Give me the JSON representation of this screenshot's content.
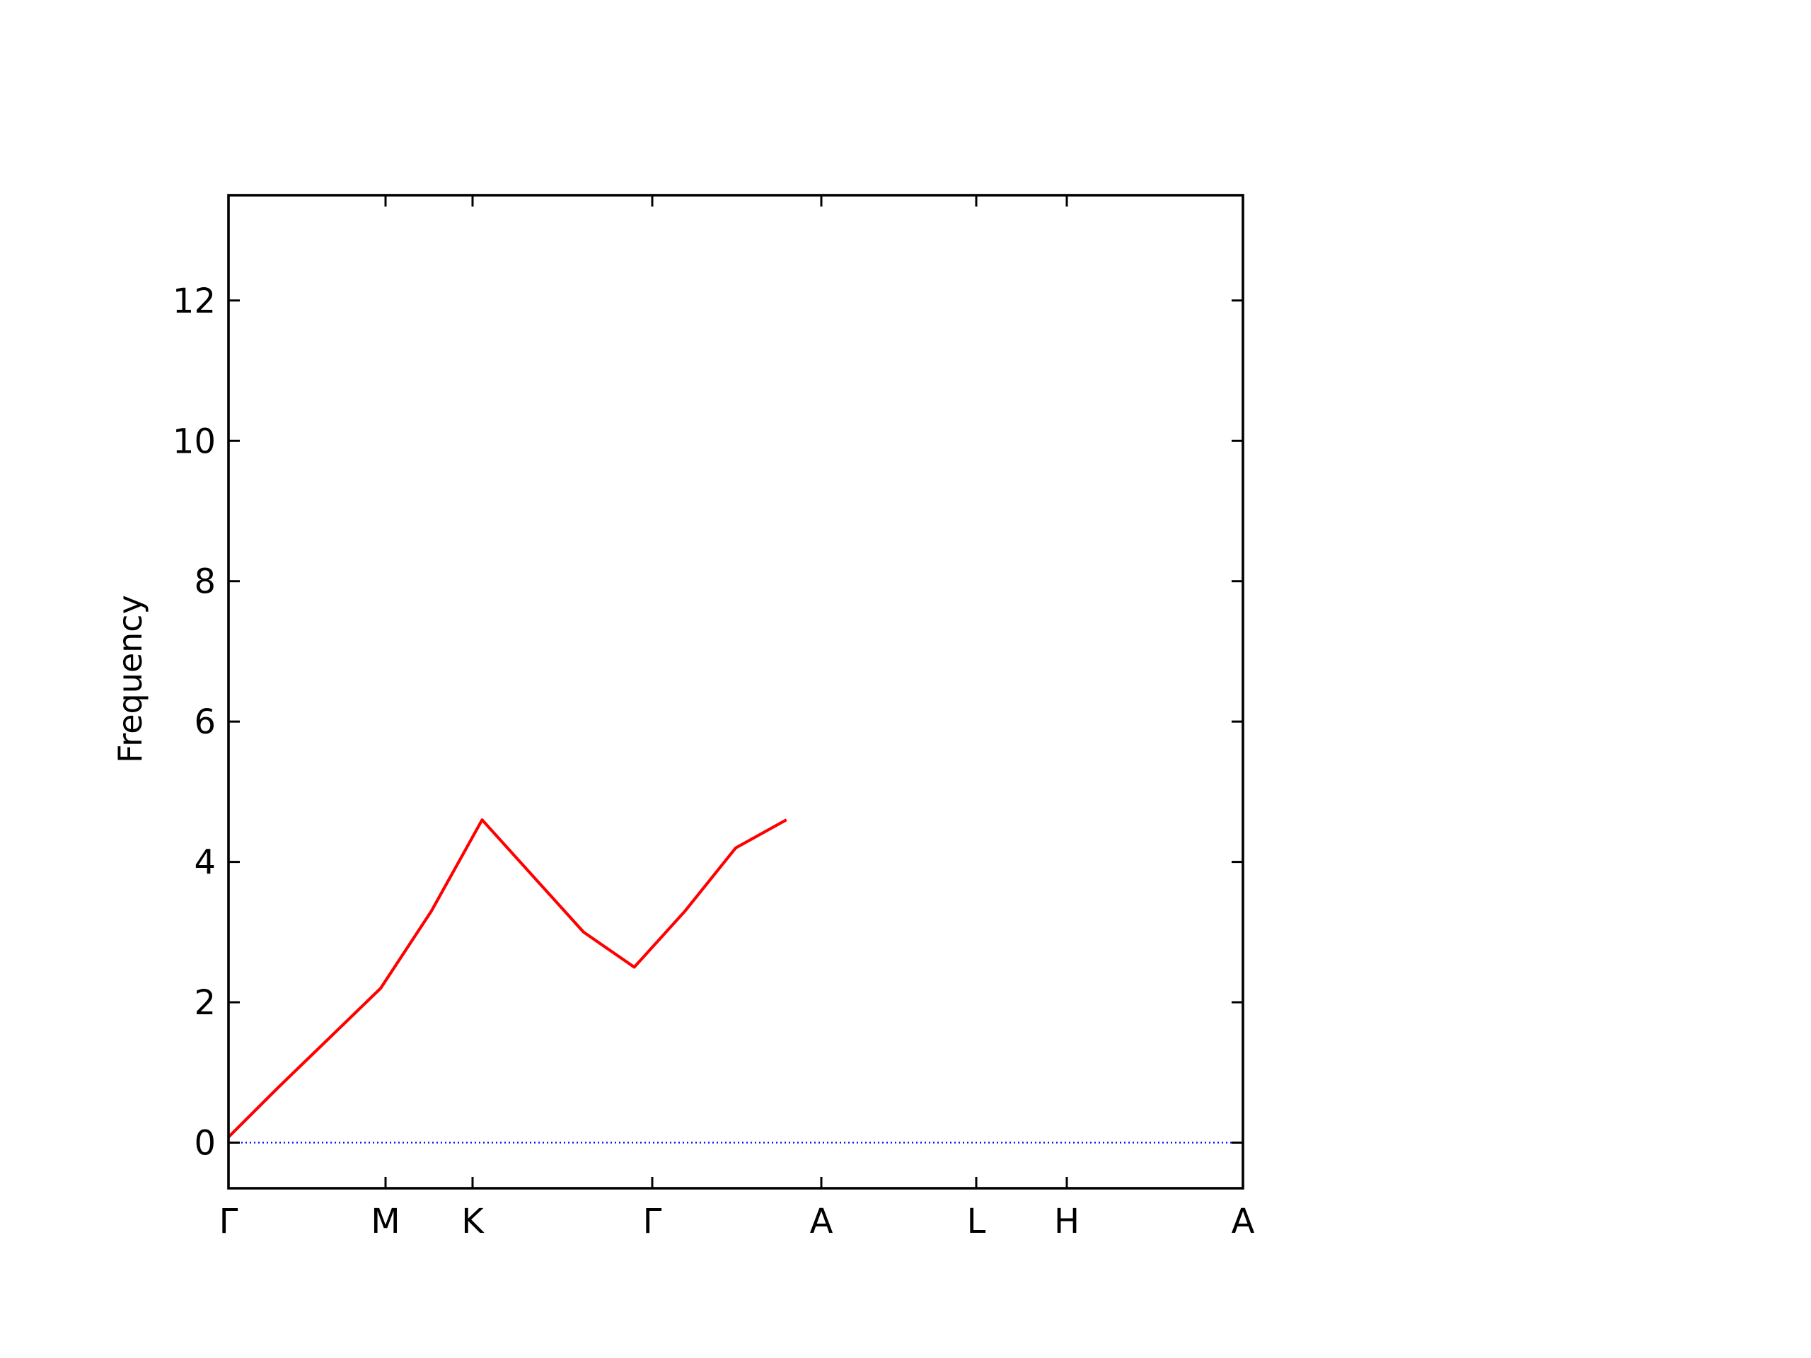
{
  "chart_data": {
    "type": "line",
    "title": "",
    "xlabel": "",
    "ylabel": "Frequency",
    "ylim": [
      -0.65,
      13.5
    ],
    "yticks": [
      0,
      2,
      4,
      6,
      8,
      10,
      12
    ],
    "zero_line_color": "#0000ff",
    "band_color": "#ff0000",
    "panels": [
      {
        "labels": [
          "Γ",
          "M",
          "K",
          "Γ",
          "A",
          "L",
          "H",
          "A"
        ],
        "bands": [
          {
            "name": "",
            "values": [
              [
                0,
                0.08
              ],
              [
                0.05,
                0.8
              ],
              [
                0.1,
                1.5
              ],
              [
                0.15,
                2.2
              ],
              [
                0.2,
                3.3
              ],
              [
                0.25,
                4.6
              ],
              [
                0.3,
                3.8
              ],
              [
                0.35,
                3.0
              ],
              [
                0.4,
                2.5
              ],
              [
                0.45,
                3.3
              ],
              [
                0.5,
                4.2
              ],
              [
                0.55,
                4.6
              ]
            ]
          }
        ]
      }
    ]
  }
}
